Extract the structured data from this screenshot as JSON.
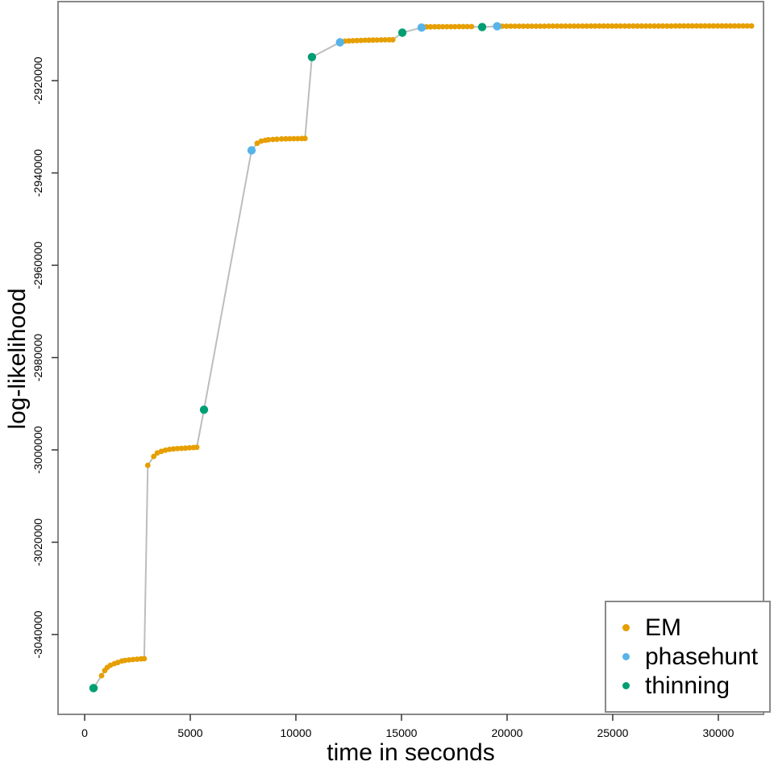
{
  "page": {
    "background": "#ffffff"
  },
  "chart_data": {
    "type": "scatter",
    "title": "",
    "xlabel": "time in seconds",
    "ylabel": "log-likelihood",
    "xlim": [
      -1260,
      32140
    ],
    "ylim": [
      -3057290,
      -2902880
    ],
    "grid": false,
    "frame_color": "#898989",
    "tick_color": "#333333",
    "text_color": "#000000",
    "connect_line": {
      "color": "#bdbdbd",
      "width": 2
    },
    "x_ticks": [
      0,
      5000,
      10000,
      15000,
      20000,
      25000,
      30000
    ],
    "x_tick_labels": [
      "0",
      "5000",
      "10000",
      "15000",
      "20000",
      "25000",
      "30000"
    ],
    "y_ticks": [
      -2920000,
      -2940000,
      -2960000,
      -2980000,
      -3000000,
      -3020000,
      -3040000
    ],
    "y_tick_labels": [
      "-2920000",
      "-2940000",
      "-2960000",
      "-2980000",
      "-3000000",
      "-3020000",
      "-3040000"
    ],
    "legend": {
      "position": "bottom-right",
      "entries": [
        "EM",
        "phasehunt",
        "thinning"
      ]
    },
    "series": [
      {
        "name": "EM",
        "color": "#E69F00",
        "marker_radius": 3.4,
        "points": [
          [
            800,
            -3048900
          ],
          [
            950,
            -3047800
          ],
          [
            1070,
            -3047150
          ],
          [
            1220,
            -3046650
          ],
          [
            1410,
            -3046300
          ],
          [
            1570,
            -3046050
          ],
          [
            1760,
            -3045750
          ],
          [
            1910,
            -3045600
          ],
          [
            2100,
            -3045500
          ],
          [
            2290,
            -3045420
          ],
          [
            2480,
            -3045350
          ],
          [
            2670,
            -3045280
          ],
          [
            2820,
            -3045230
          ],
          [
            2990,
            -3003330
          ],
          [
            3270,
            -3001410
          ],
          [
            3440,
            -3000660
          ],
          [
            3630,
            -3000310
          ],
          [
            3820,
            -3000060
          ],
          [
            4010,
            -2999890
          ],
          [
            4200,
            -2999790
          ],
          [
            4390,
            -2999720
          ],
          [
            4580,
            -2999660
          ],
          [
            4770,
            -2999610
          ],
          [
            4960,
            -2999540
          ],
          [
            5150,
            -2999490
          ],
          [
            5310,
            -2999440
          ],
          [
            8170,
            -2933570
          ],
          [
            8360,
            -2933100
          ],
          [
            8550,
            -2932930
          ],
          [
            8700,
            -2932810
          ],
          [
            8910,
            -2932750
          ],
          [
            9100,
            -2932700
          ],
          [
            9320,
            -2932630
          ],
          [
            9520,
            -2932610
          ],
          [
            9710,
            -2932590
          ],
          [
            9900,
            -2932580
          ],
          [
            10090,
            -2932570
          ],
          [
            10280,
            -2932540
          ],
          [
            10430,
            -2932530
          ],
          [
            12320,
            -2911440
          ],
          [
            12510,
            -2911390
          ],
          [
            12700,
            -2911350
          ],
          [
            12890,
            -2911310
          ],
          [
            13080,
            -2911280
          ],
          [
            13270,
            -2911250
          ],
          [
            13460,
            -2911230
          ],
          [
            13650,
            -2911210
          ],
          [
            13840,
            -2911190
          ],
          [
            14040,
            -2911170
          ],
          [
            14230,
            -2911160
          ],
          [
            14420,
            -2911150
          ],
          [
            14590,
            -2911140
          ],
          [
            16180,
            -2908350
          ],
          [
            16370,
            -2908340
          ],
          [
            16570,
            -2908330
          ],
          [
            16760,
            -2908330
          ],
          [
            16950,
            -2908320
          ],
          [
            17150,
            -2908320
          ],
          [
            17340,
            -2908310
          ],
          [
            17530,
            -2908310
          ],
          [
            17730,
            -2908300
          ],
          [
            17920,
            -2908300
          ],
          [
            18120,
            -2908290
          ],
          [
            18320,
            -2908290
          ],
          [
            19770,
            -2908210
          ],
          [
            19970,
            -2908200
          ],
          [
            20170,
            -2908200
          ],
          [
            20370,
            -2908200
          ],
          [
            20570,
            -2908200
          ],
          [
            20770,
            -2908200
          ],
          [
            20970,
            -2908200
          ],
          [
            21170,
            -2908200
          ],
          [
            21370,
            -2908200
          ],
          [
            21570,
            -2908200
          ],
          [
            21770,
            -2908200
          ],
          [
            21970,
            -2908190
          ],
          [
            22170,
            -2908190
          ],
          [
            22370,
            -2908190
          ],
          [
            22570,
            -2908190
          ],
          [
            22770,
            -2908190
          ],
          [
            22970,
            -2908190
          ],
          [
            23170,
            -2908190
          ],
          [
            23370,
            -2908190
          ],
          [
            23570,
            -2908190
          ],
          [
            23770,
            -2908190
          ],
          [
            23970,
            -2908180
          ],
          [
            24170,
            -2908180
          ],
          [
            24370,
            -2908180
          ],
          [
            24570,
            -2908180
          ],
          [
            24770,
            -2908180
          ],
          [
            24970,
            -2908180
          ],
          [
            25170,
            -2908180
          ],
          [
            25370,
            -2908180
          ],
          [
            25570,
            -2908180
          ],
          [
            25770,
            -2908180
          ],
          [
            25970,
            -2908170
          ],
          [
            26170,
            -2908170
          ],
          [
            26370,
            -2908170
          ],
          [
            26570,
            -2908170
          ],
          [
            26770,
            -2908170
          ],
          [
            26970,
            -2908170
          ],
          [
            27170,
            -2908170
          ],
          [
            27370,
            -2908170
          ],
          [
            27570,
            -2908170
          ],
          [
            27770,
            -2908170
          ],
          [
            27970,
            -2908160
          ],
          [
            28170,
            -2908160
          ],
          [
            28370,
            -2908160
          ],
          [
            28570,
            -2908160
          ],
          [
            28770,
            -2908160
          ],
          [
            28970,
            -2908160
          ],
          [
            29170,
            -2908160
          ],
          [
            29370,
            -2908160
          ],
          [
            29570,
            -2908160
          ],
          [
            29770,
            -2908160
          ],
          [
            29970,
            -2908150
          ],
          [
            30170,
            -2908150
          ],
          [
            30370,
            -2908150
          ],
          [
            30570,
            -2908150
          ],
          [
            30770,
            -2908150
          ],
          [
            30970,
            -2908150
          ],
          [
            31170,
            -2908150
          ],
          [
            31370,
            -2908150
          ],
          [
            31570,
            -2908150
          ]
        ]
      },
      {
        "name": "phasehunt",
        "color": "#56B4E9",
        "marker_radius": 5.2,
        "points": [
          [
            7900,
            -2935100
          ],
          [
            12090,
            -2911700
          ],
          [
            15950,
            -2908500
          ],
          [
            19530,
            -2908220
          ]
        ]
      },
      {
        "name": "thinning",
        "color": "#009E73",
        "marker_radius": 5.2,
        "points": [
          [
            420,
            -3051600
          ],
          [
            5650,
            -2991300
          ],
          [
            10760,
            -2914900
          ],
          [
            15040,
            -2909600
          ],
          [
            18820,
            -2908400
          ]
        ]
      }
    ]
  }
}
